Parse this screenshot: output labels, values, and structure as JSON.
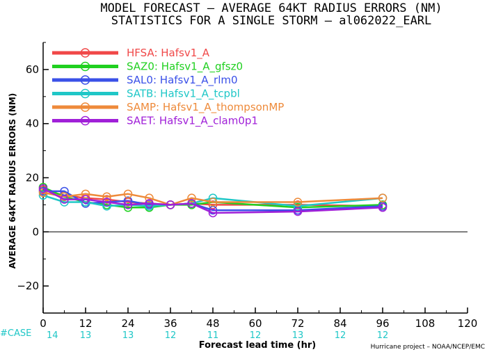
{
  "title_line1": "MODEL FORECAST – AVERAGE 64KT RADIUS ERRORS (NM)",
  "title_line2": "STATISTICS FOR A SINGLE STORM – al062022_EARL",
  "ylabel": "AVERAGE 64KT RADIUS ERRORS (NM)",
  "xlabel": "Forecast lead time (hr)",
  "credit": "Hurricane project – NOAA/NCEP/EMC",
  "case_label": "#CASE",
  "case_color": "#1fc7c7",
  "case_counts": [
    "14",
    "13",
    "13",
    "12",
    "11",
    "12",
    "13",
    "12",
    "12"
  ],
  "chart_data": {
    "type": "line",
    "xlim": [
      0,
      120
    ],
    "ylim": [
      -30,
      70
    ],
    "xticks": [
      0,
      12,
      24,
      36,
      48,
      60,
      72,
      84,
      96,
      108,
      120
    ],
    "yticks": [
      -20,
      0,
      20,
      40,
      60
    ],
    "zero_line": true,
    "legend_position": "top-left",
    "series": [
      {
        "name": "HFSA:",
        "desc": "Hafsv1_A",
        "color": "#f04848",
        "x": [
          0,
          6,
          12,
          18,
          24,
          30,
          36,
          42,
          48,
          72,
          96
        ],
        "y": [
          15.5,
          13.5,
          12.5,
          12,
          11,
          10.5,
          10,
          10.5,
          10,
          10,
          9.5
        ]
      },
      {
        "name": "SAZ0:",
        "desc": "Hafsv1_A_gfsz0",
        "color": "#20d020",
        "x": [
          0,
          6,
          12,
          18,
          24,
          30,
          36,
          42,
          48,
          72,
          96
        ],
        "y": [
          16.5,
          13,
          11,
          10,
          9,
          9,
          10,
          10,
          11,
          9,
          10
        ]
      },
      {
        "name": "SAL0:",
        "desc": "Hafsv1_A_rlm0",
        "color": "#3a50e8",
        "x": [
          0,
          6,
          12,
          18,
          24,
          30,
          36,
          42,
          48,
          72,
          96
        ],
        "y": [
          15,
          15,
          10.5,
          11,
          11.5,
          10,
          10,
          10.5,
          8,
          8,
          9.5
        ]
      },
      {
        "name": "SATB:",
        "desc": "Hafsv1_A_tcpbl",
        "color": "#1fc7c7",
        "x": [
          0,
          6,
          12,
          18,
          24,
          30,
          36,
          42,
          48,
          72,
          96
        ],
        "y": [
          13.5,
          11,
          11,
          9.5,
          10,
          9.5,
          10,
          10.5,
          12.5,
          9.5,
          12.5
        ]
      },
      {
        "name": "SAMP:",
        "desc": "Hafsv1_A_thompsonMP",
        "color": "#ee8a3a",
        "x": [
          0,
          6,
          12,
          18,
          24,
          30,
          36,
          42,
          48,
          72,
          96
        ],
        "y": [
          14.5,
          13,
          14,
          13,
          14,
          12.5,
          10,
          12.5,
          11,
          11,
          12.5
        ]
      },
      {
        "name": "SAET:",
        "desc": "Hafsv1_A_clam0p1",
        "color": "#a020d8",
        "x": [
          0,
          6,
          12,
          18,
          24,
          30,
          36,
          42,
          48,
          72,
          96
        ],
        "y": [
          16,
          12,
          12,
          11,
          10,
          10.5,
          10,
          10.5,
          7,
          7.5,
          9
        ]
      }
    ]
  }
}
